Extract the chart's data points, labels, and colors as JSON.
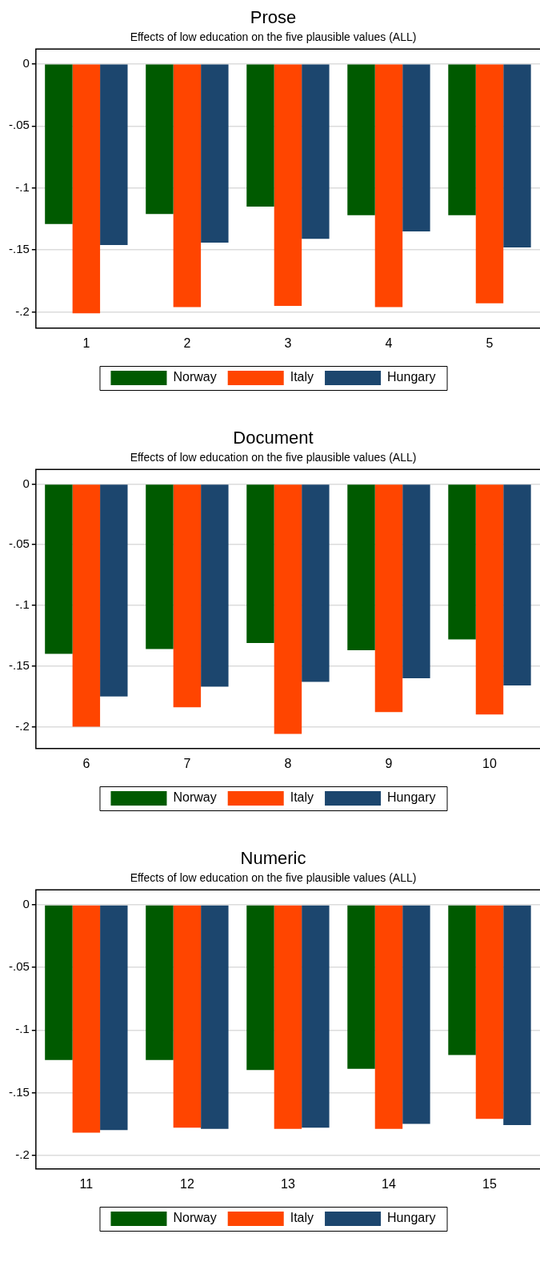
{
  "chart_data": [
    {
      "type": "bar",
      "title": "Prose",
      "subtitle": "Effects of low education on the five plausible values (ALL)",
      "categories": [
        "1",
        "2",
        "3",
        "4",
        "5"
      ],
      "series": [
        {
          "name": "Norway",
          "color": "#005a00",
          "values": [
            -0.129,
            -0.121,
            -0.115,
            -0.122,
            -0.122
          ]
        },
        {
          "name": "Italy",
          "color": "#ff4500",
          "values": [
            -0.201,
            -0.196,
            -0.195,
            -0.196,
            -0.193
          ]
        },
        {
          "name": "Hungary",
          "color": "#1c466e",
          "values": [
            -0.146,
            -0.144,
            -0.141,
            -0.135,
            -0.148
          ]
        }
      ],
      "ylim": [
        -0.213,
        0.012
      ],
      "yticks": [
        {
          "value": 0,
          "label": "0"
        },
        {
          "value": -0.05,
          "label": "-.05"
        },
        {
          "value": -0.1,
          "label": "-.1"
        },
        {
          "value": -0.15,
          "label": "-.15"
        },
        {
          "value": -0.2,
          "label": "-.2"
        }
      ],
      "grid": "y",
      "legend": "bottom"
    },
    {
      "type": "bar",
      "title": "Document",
      "subtitle": "Effects of low education on the five plausible values (ALL)",
      "categories": [
        "6",
        "7",
        "8",
        "9",
        "10"
      ],
      "series": [
        {
          "name": "Norway",
          "color": "#005a00",
          "values": [
            -0.14,
            -0.136,
            -0.131,
            -0.137,
            -0.128
          ]
        },
        {
          "name": "Italy",
          "color": "#ff4500",
          "values": [
            -0.2,
            -0.184,
            -0.206,
            -0.188,
            -0.19
          ]
        },
        {
          "name": "Hungary",
          "color": "#1c466e",
          "values": [
            -0.175,
            -0.167,
            -0.163,
            -0.16,
            -0.166
          ]
        }
      ],
      "ylim": [
        -0.218,
        0.012
      ],
      "yticks": [
        {
          "value": 0,
          "label": "0"
        },
        {
          "value": -0.05,
          "label": "-.05"
        },
        {
          "value": -0.1,
          "label": "-.1"
        },
        {
          "value": -0.15,
          "label": "-.15"
        },
        {
          "value": -0.2,
          "label": "-.2"
        }
      ],
      "grid": "y",
      "legend": "bottom"
    },
    {
      "type": "bar",
      "title": "Numeric",
      "subtitle": "Effects of low education on the five plausible values (ALL)",
      "categories": [
        "11",
        "12",
        "13",
        "14",
        "15"
      ],
      "series": [
        {
          "name": "Norway",
          "color": "#005a00",
          "values": [
            -0.124,
            -0.124,
            -0.132,
            -0.131,
            -0.12
          ]
        },
        {
          "name": "Italy",
          "color": "#ff4500",
          "values": [
            -0.182,
            -0.178,
            -0.179,
            -0.179,
            -0.171
          ]
        },
        {
          "name": "Hungary",
          "color": "#1c466e",
          "values": [
            -0.18,
            -0.179,
            -0.178,
            -0.175,
            -0.176
          ]
        }
      ],
      "ylim": [
        -0.211,
        0.012
      ],
      "yticks": [
        {
          "value": 0,
          "label": "0"
        },
        {
          "value": -0.05,
          "label": "-.05"
        },
        {
          "value": -0.1,
          "label": "-.1"
        },
        {
          "value": -0.15,
          "label": "-.15"
        },
        {
          "value": -0.2,
          "label": "-.2"
        }
      ],
      "grid": "y",
      "legend": "bottom"
    }
  ]
}
